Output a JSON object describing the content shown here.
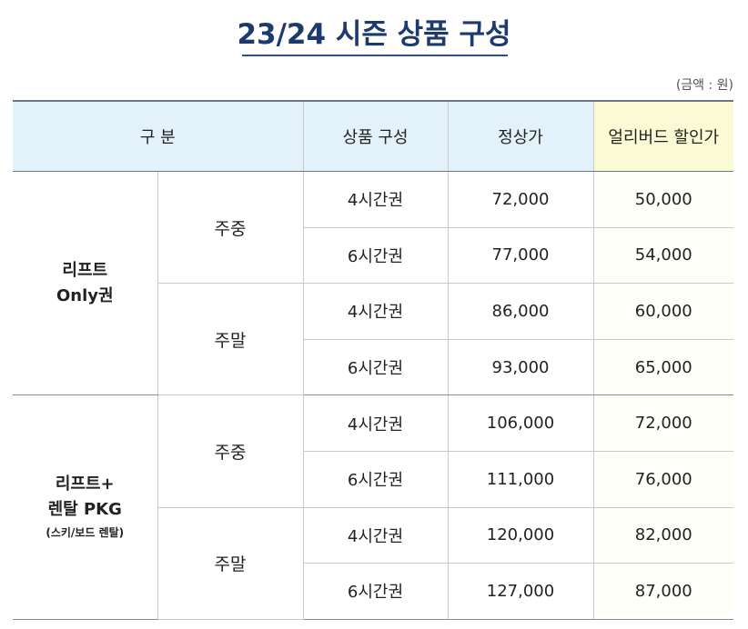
{
  "title": "23/24 시즌 상품 구성",
  "unit_note": "(금액 : 원)",
  "colors": {
    "title": "#1d3a6e",
    "header_bg": "#e3f1fa",
    "early_header_bg": "#fafad4",
    "border": "#c9c9c9"
  },
  "table": {
    "headers": {
      "category": "구 분",
      "product": "상품 구성",
      "regular": "정상가",
      "early": "얼리버드 할인가"
    },
    "groups": [
      {
        "name_line1": "리프트",
        "name_line2": "Only권",
        "note": "",
        "day_types": [
          {
            "label": "주중",
            "rows": [
              {
                "product": "4시간권",
                "regular": "72,000",
                "early": "50,000"
              },
              {
                "product": "6시간권",
                "regular": "77,000",
                "early": "54,000"
              }
            ]
          },
          {
            "label": "주말",
            "rows": [
              {
                "product": "4시간권",
                "regular": "86,000",
                "early": "60,000"
              },
              {
                "product": "6시간권",
                "regular": "93,000",
                "early": "65,000"
              }
            ]
          }
        ]
      },
      {
        "name_line1": "리프트+",
        "name_line2": "렌탈 PKG",
        "note": "(스키/보드 렌탈)",
        "day_types": [
          {
            "label": "주중",
            "rows": [
              {
                "product": "4시간권",
                "regular": "106,000",
                "early": "72,000"
              },
              {
                "product": "6시간권",
                "regular": "111,000",
                "early": "76,000"
              }
            ]
          },
          {
            "label": "주말",
            "rows": [
              {
                "product": "4시간권",
                "regular": "120,000",
                "early": "82,000"
              },
              {
                "product": "6시간권",
                "regular": "127,000",
                "early": "87,000"
              }
            ]
          }
        ]
      }
    ]
  }
}
